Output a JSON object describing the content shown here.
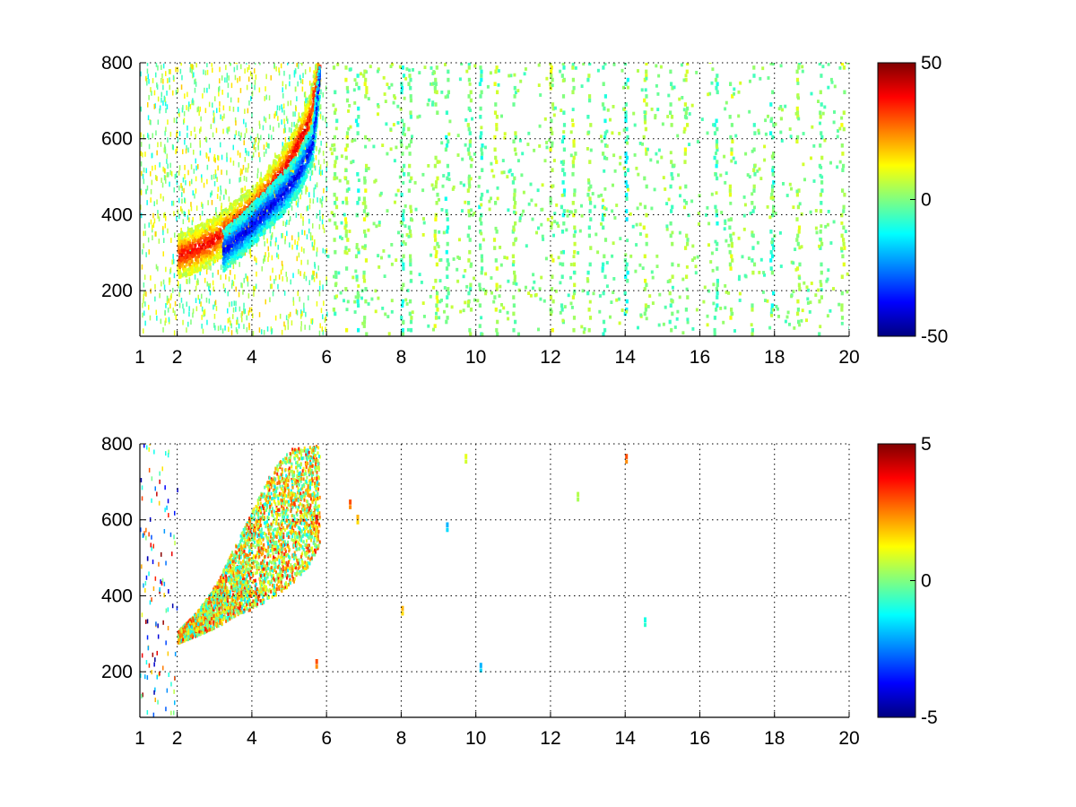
{
  "chart_data": [
    {
      "type": "heatmap",
      "title": "",
      "xlabel": "",
      "ylabel": "",
      "xlim": [
        1,
        20
      ],
      "ylim": [
        80,
        800
      ],
      "xticks": [
        1,
        2,
        4,
        6,
        8,
        10,
        12,
        14,
        16,
        18,
        20
      ],
      "xtick_labels": [
        "1",
        "2",
        "4",
        "6",
        "8",
        "10",
        "12",
        "14",
        "16",
        "18",
        "20"
      ],
      "yticks": [
        200,
        400,
        600,
        800
      ],
      "ytick_labels": [
        "200",
        "400",
        "600",
        "800"
      ],
      "grid": true,
      "colormap": "jet",
      "clim": [
        -50,
        50
      ],
      "colorbar_ticks": [
        -50,
        0,
        50
      ],
      "colorbar_tick_labels": [
        "-50",
        "0",
        "50"
      ],
      "features": {
        "ridge_positive": [
          [
            2.0,
            285
          ],
          [
            2.5,
            305
          ],
          [
            3.0,
            330
          ],
          [
            3.5,
            370
          ],
          [
            4.0,
            410
          ],
          [
            4.5,
            470
          ],
          [
            5.0,
            540
          ],
          [
            5.5,
            640
          ],
          [
            5.8,
            790
          ]
        ],
        "ridge_negative": [
          [
            3.2,
            300
          ],
          [
            3.8,
            350
          ],
          [
            4.3,
            400
          ],
          [
            4.8,
            450
          ],
          [
            5.2,
            500
          ],
          [
            5.6,
            580
          ],
          [
            5.8,
            760
          ]
        ],
        "ridge_positive_value": 40,
        "ridge_negative_value": -40,
        "dense_region_x": [
          1,
          6
        ],
        "stripe_x": [
          6.2,
          6.5,
          6.8,
          7.0,
          8.0,
          8.2,
          8.9,
          9.2,
          9.8,
          10.1,
          10.5,
          11.0,
          12.0,
          12.3,
          12.6,
          13.0,
          13.4,
          14.0,
          14.5,
          15.2,
          15.6,
          16.4,
          16.8,
          17.4,
          17.9,
          18.6,
          19.2,
          19.8
        ],
        "stripe_values": [
          0,
          5,
          -5,
          5,
          -5,
          0,
          5,
          -5,
          0,
          -5,
          5,
          0,
          5,
          -5,
          5,
          0,
          -5,
          -10,
          5,
          0,
          5,
          -5,
          5,
          0,
          -5,
          5,
          0,
          5
        ]
      }
    },
    {
      "type": "heatmap",
      "title": "",
      "xlabel": "",
      "ylabel": "",
      "xlim": [
        1,
        20
      ],
      "ylim": [
        80,
        800
      ],
      "xticks": [
        1,
        2,
        4,
        6,
        8,
        10,
        12,
        14,
        16,
        18,
        20
      ],
      "xtick_labels": [
        "1",
        "2",
        "4",
        "6",
        "8",
        "10",
        "12",
        "14",
        "16",
        "18",
        "20"
      ],
      "yticks": [
        200,
        400,
        600,
        800
      ],
      "ytick_labels": [
        "200",
        "400",
        "600",
        "800"
      ],
      "grid": true,
      "colormap": "jet",
      "clim": [
        -5,
        5
      ],
      "colorbar_ticks": [
        -5,
        0,
        5
      ],
      "colorbar_tick_labels": [
        "-5",
        "0",
        "5"
      ],
      "features": {
        "band_lower": [
          [
            2.0,
            270
          ],
          [
            2.5,
            290
          ],
          [
            3.0,
            310
          ],
          [
            3.5,
            340
          ],
          [
            4.0,
            360
          ],
          [
            4.5,
            390
          ],
          [
            5.0,
            420
          ],
          [
            5.5,
            470
          ],
          [
            5.8,
            530
          ]
        ],
        "band_upper": [
          [
            2.0,
            300
          ],
          [
            2.5,
            350
          ],
          [
            3.0,
            420
          ],
          [
            3.5,
            520
          ],
          [
            4.0,
            620
          ],
          [
            4.5,
            720
          ],
          [
            5.0,
            780
          ],
          [
            5.8,
            790
          ]
        ],
        "band_values": [
          -1,
          0,
          1,
          2,
          3
        ],
        "isolated_points": [
          [
            14.0,
            760,
            3
          ],
          [
            9.2,
            580,
            -2
          ],
          [
            10.1,
            210,
            -2
          ],
          [
            12.7,
            660,
            0.5
          ],
          [
            14.5,
            330,
            -1
          ],
          [
            6.8,
            600,
            2
          ],
          [
            6.6,
            640,
            3
          ],
          [
            5.7,
            600,
            4
          ],
          [
            5.7,
            220,
            3
          ],
          [
            8.0,
            360,
            2
          ],
          [
            9.7,
            760,
            1
          ]
        ]
      }
    }
  ]
}
